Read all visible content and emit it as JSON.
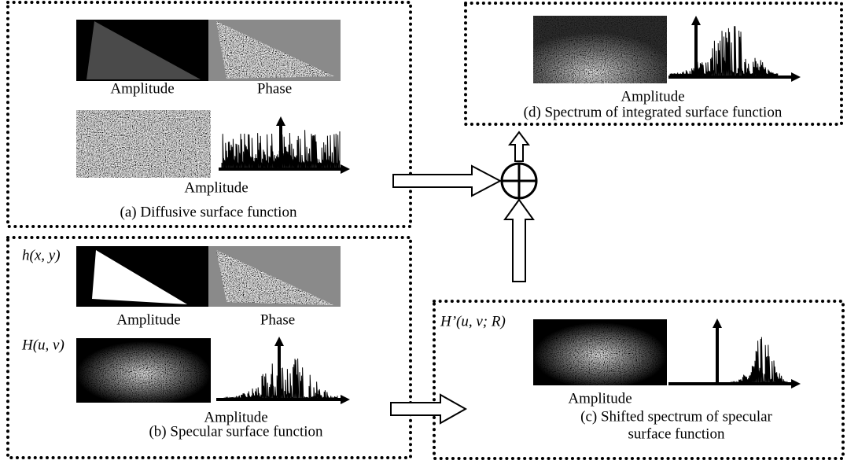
{
  "panel_a": {
    "amplitude_label": "Amplitude",
    "phase_label": "Phase",
    "spectrum_label": "Amplitude",
    "caption": "(a) Diffusive surface function"
  },
  "panel_b": {
    "spatial_symbol": "h(x, y)",
    "amplitude_label": "Amplitude",
    "phase_label": "Phase",
    "spectrum_symbol": "H(u, v)",
    "spectrum_label": "Amplitude",
    "caption": "(b) Specular surface function"
  },
  "panel_c": {
    "symbol": "H’(u, v; R)",
    "spectrum_label": "Amplitude",
    "caption": [
      "(c) Shifted spectrum of specular",
      "surface function"
    ]
  },
  "panel_d": {
    "spectrum_label": "Amplitude",
    "caption": "(d) Spectrum of integrated surface function"
  }
}
